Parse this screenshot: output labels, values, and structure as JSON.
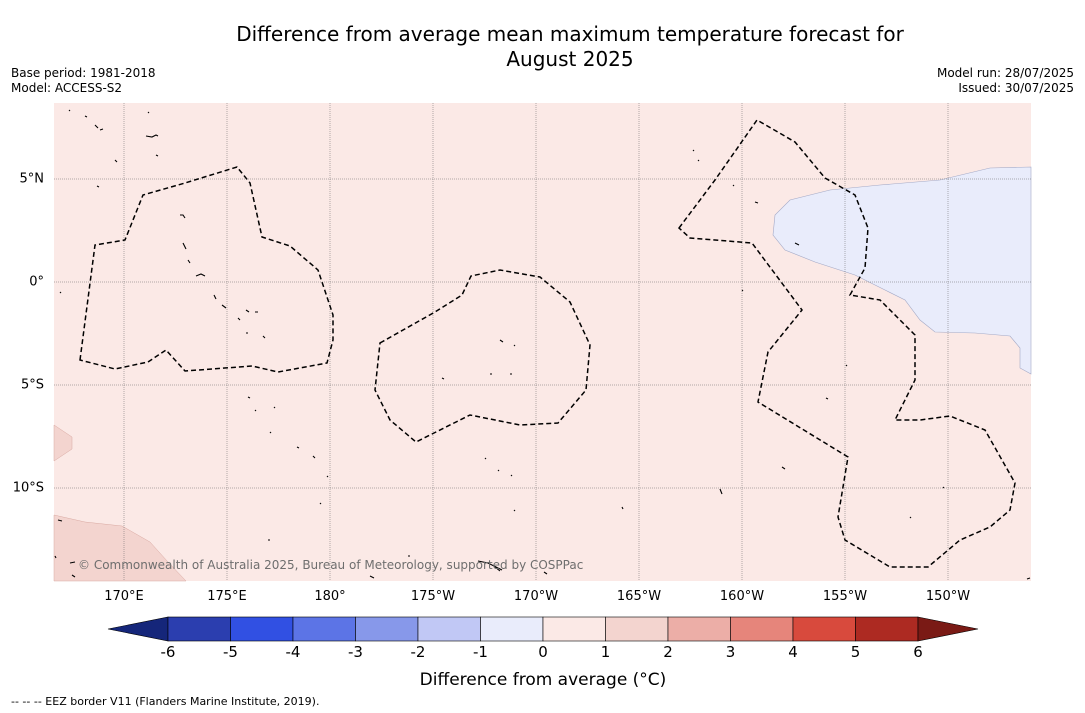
{
  "title_line1": "Difference from average mean maximum temperature forecast for",
  "title_line2": "August 2025",
  "meta": {
    "base_period": "Base period: 1981-2018",
    "model": "Model: ACCESS-S2",
    "model_run": "Model run: 28/07/2025",
    "issued": "Issued: 30/07/2025"
  },
  "map": {
    "lon_labels": [
      "170°E",
      "175°E",
      "180°",
      "175°W",
      "170°W",
      "165°W",
      "160°W",
      "155°W",
      "150°W"
    ],
    "lat_labels": [
      "5°N",
      "0°",
      "5°S",
      "10°S"
    ],
    "credit": "© Commonwealth of Australia 2025, Bureau of Meteorology, supported by COSPPac",
    "colors": {
      "ocean_base": "#fbe9e6",
      "anomaly_plus_1_2": "#f3d4cf",
      "anomaly_minus_1_0": "#e9ecfb",
      "eez_border": "#000000"
    }
  },
  "colorbar": {
    "ticks": [
      "-6",
      "-5",
      "-4",
      "-3",
      "-2",
      "-1",
      "0",
      "1",
      "2",
      "3",
      "4",
      "5",
      "6"
    ],
    "colors": [
      "#15267a",
      "#2b3eaf",
      "#3150e3",
      "#5c74e6",
      "#8798ea",
      "#c1c8f5",
      "#e9ecfb",
      "#fbe9e6",
      "#f3d4cf",
      "#ecaea7",
      "#e6857b",
      "#d84a3d",
      "#ad2a22",
      "#7a1a15"
    ],
    "label": "Difference from average (°C)"
  },
  "legend_note": "--  --  -- EEZ border V11 (Flanders Marine Institute, 2019)."
}
